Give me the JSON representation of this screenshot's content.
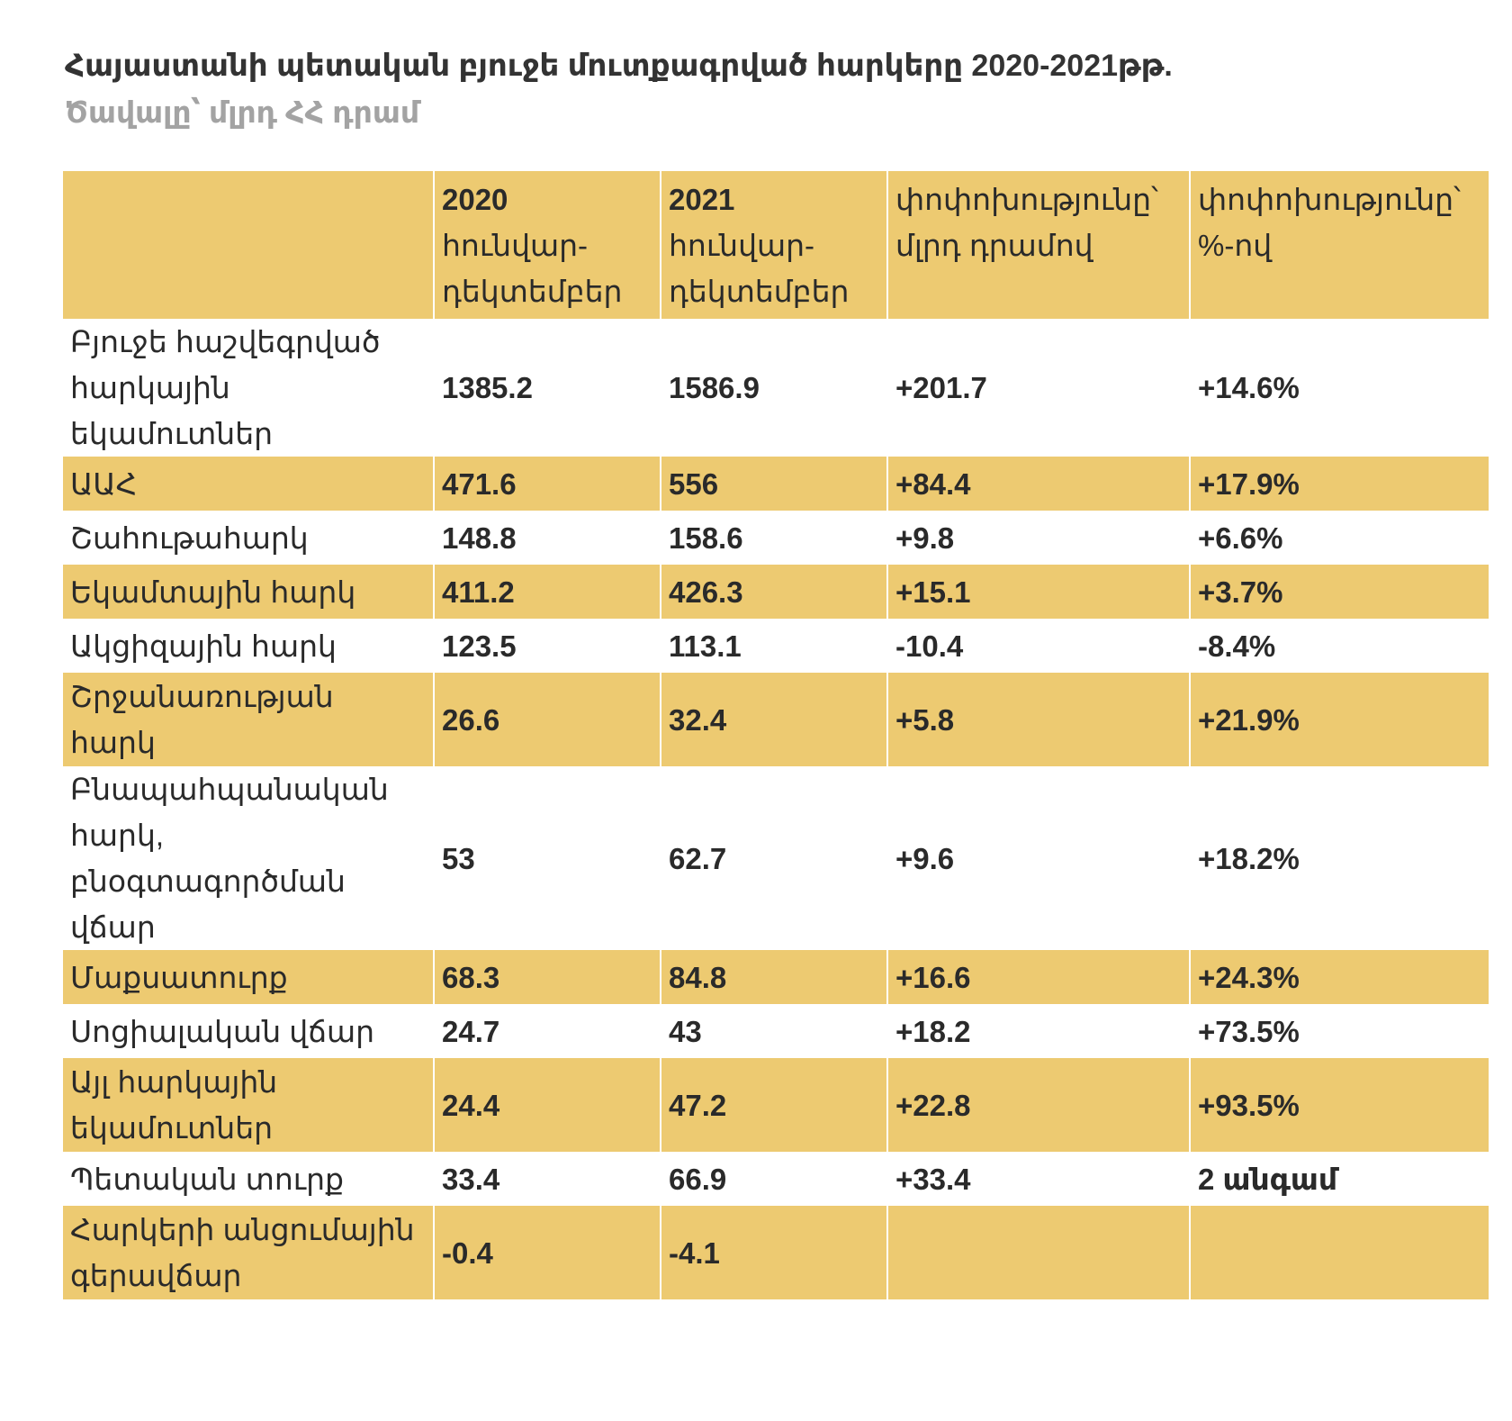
{
  "title": "Հայաստանի պետական բյուջե մուտքագրված հարկերը 2020-2021թթ.",
  "subtitle": "Ծավալը՝ մլրդ ՀՀ դրամ",
  "colors": {
    "header_bg": "#edca71",
    "stripe_bg": "#edca71",
    "title": "#333333",
    "subtitle": "#a3a3a3"
  },
  "chart_data": {
    "type": "table",
    "columns": [
      {
        "key": "label",
        "year": "",
        "text": ""
      },
      {
        "key": "y2020",
        "year": "2020",
        "text": "հունվար-դեկտեմբեր"
      },
      {
        "key": "y2021",
        "year": "2021",
        "text": "հունվար-դեկտեմբեր"
      },
      {
        "key": "change_abs",
        "year": "",
        "text": "փոփոխությունը՝ մլրդ դրամով"
      },
      {
        "key": "change_pct",
        "year": "",
        "text": "փոփոխությունը՝ %-ով"
      }
    ],
    "rows": [
      {
        "label": "Բյուջե հաշվեգրված հարկային եկամուտներ",
        "y2020": "1385.2",
        "y2021": "1586.9",
        "change_abs": "+201.7",
        "change_pct": "+14.6%",
        "highlight": false
      },
      {
        "label": "ԱԱՀ",
        "y2020": "471.6",
        "y2021": "556",
        "change_abs": "+84.4",
        "change_pct": "+17.9%",
        "highlight": true
      },
      {
        "label": "Շահութահարկ",
        "y2020": "148.8",
        "y2021": "158.6",
        "change_abs": "+9.8",
        "change_pct": "+6.6%",
        "highlight": false
      },
      {
        "label": "Եկամտային հարկ",
        "y2020": "411.2",
        "y2021": "426.3",
        "change_abs": "+15.1",
        "change_pct": "+3.7%",
        "highlight": true
      },
      {
        "label": "Ակցիզային հարկ",
        "y2020": "123.5",
        "y2021": "113.1",
        "change_abs": "-10.4",
        "change_pct": "-8.4%",
        "highlight": false
      },
      {
        "label": "Շրջանառության հարկ",
        "y2020": "26.6",
        "y2021": "32.4",
        "change_abs": "+5.8",
        "change_pct": "+21.9%",
        "highlight": true
      },
      {
        "label": "Բնապահպանական հարկ, բնօգտագործման վճար",
        "y2020": "53",
        "y2021": "62.7",
        "change_abs": "+9.6",
        "change_pct": "+18.2%",
        "highlight": false
      },
      {
        "label": "Մաքսատուրք",
        "y2020": "68.3",
        "y2021": "84.8",
        "change_abs": "+16.6",
        "change_pct": "+24.3%",
        "highlight": true
      },
      {
        "label": "Սոցիալական վճար",
        "y2020": "24.7",
        "y2021": "43",
        "change_abs": "+18.2",
        "change_pct": "+73.5%",
        "highlight": false
      },
      {
        "label": "Այլ հարկային եկամուտներ",
        "y2020": "24.4",
        "y2021": "47.2",
        "change_abs": "+22.8",
        "change_pct": "+93.5%",
        "highlight": true
      },
      {
        "label": "Պետական տուրք",
        "y2020": "33.4",
        "y2021": "66.9",
        "change_abs": "+33.4",
        "change_pct": "2 անգամ",
        "highlight": false
      },
      {
        "label": "Հարկերի անցումային գերավճար",
        "y2020": "-0.4",
        "y2021": "-4.1",
        "change_abs": "",
        "change_pct": "",
        "highlight": true
      }
    ]
  }
}
